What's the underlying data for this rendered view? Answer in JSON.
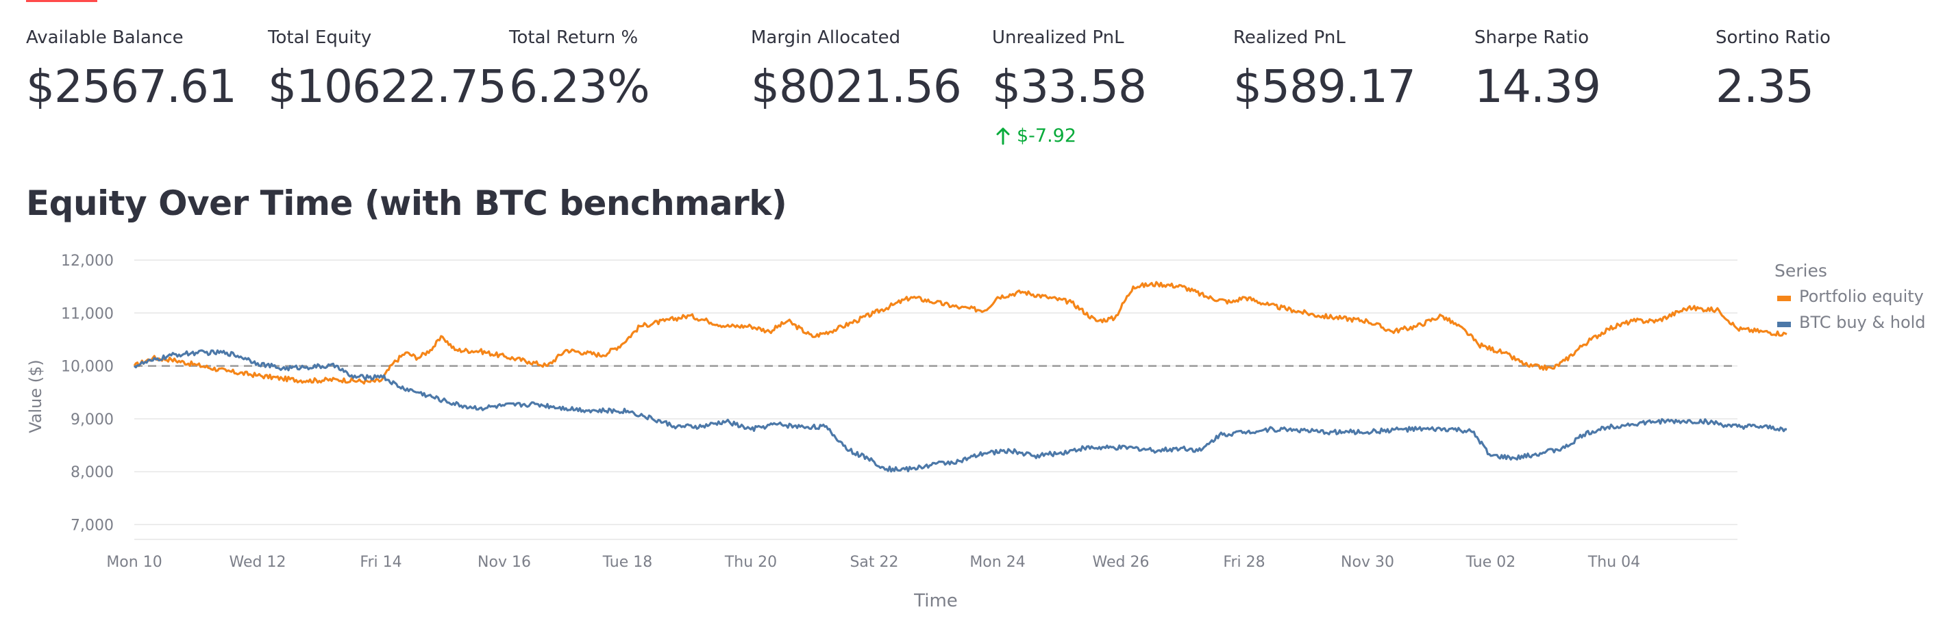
{
  "metrics": [
    {
      "label": "Available Balance",
      "value": "$2567.61"
    },
    {
      "label": "Total Equity",
      "value": "$10622.75"
    },
    {
      "label": "Total Return %",
      "value": "6.23%"
    },
    {
      "label": "Margin Allocated",
      "value": "$8021.56"
    },
    {
      "label": "Unrealized PnL",
      "value": "$33.58",
      "delta": "$-7.92",
      "delta_icon": "arrow-up-icon"
    },
    {
      "label": "Realized PnL",
      "value": "$589.17"
    },
    {
      "label": "Sharpe Ratio",
      "value": "14.39"
    },
    {
      "label": "Sortino Ratio",
      "value": "2.35"
    }
  ],
  "section": {
    "title": "Equity Over Time (with BTC benchmark)"
  },
  "colors": {
    "accent": "#ff4b4b",
    "delta_positive": "#09ab3b",
    "portfolio": "#f58518",
    "btc": "#4c78a8",
    "baseline": "#999999",
    "grid": "#e6e6e6"
  },
  "chart_data": {
    "type": "line",
    "title": "Equity Over Time (with BTC benchmark)",
    "xlabel": "Time",
    "ylabel": "Value ($)",
    "x_ticks": [
      "Mon 10",
      "Wed 12",
      "Fri 14",
      "Nov 16",
      "Tue 18",
      "Thu 20",
      "Sat 22",
      "Mon 24",
      "Wed 26",
      "Fri 28",
      "Nov 30",
      "Tue 02",
      "Thu 04"
    ],
    "y_ticks": [
      "7,000",
      "8,000",
      "9,000",
      "10,000",
      "11,000",
      "12,000"
    ],
    "x_range_days": [
      10,
      36
    ],
    "ylim": [
      6850,
      12000
    ],
    "grid": true,
    "legend_title": "Series",
    "legend_position": "right",
    "baseline": 10000,
    "series": [
      {
        "name": "Portfolio equity",
        "points": [
          [
            10.0,
            10000
          ],
          [
            10.3,
            10150
          ],
          [
            10.6,
            10120
          ],
          [
            11.0,
            10020
          ],
          [
            11.5,
            9900
          ],
          [
            12.0,
            9820
          ],
          [
            12.4,
            9760
          ],
          [
            12.8,
            9720
          ],
          [
            13.3,
            9740
          ],
          [
            13.8,
            9700
          ],
          [
            14.0,
            9720
          ],
          [
            14.2,
            10050
          ],
          [
            14.4,
            10250
          ],
          [
            14.6,
            10150
          ],
          [
            14.8,
            10300
          ],
          [
            15.0,
            10550
          ],
          [
            15.2,
            10300
          ],
          [
            15.6,
            10280
          ],
          [
            16.0,
            10180
          ],
          [
            16.4,
            10080
          ],
          [
            16.7,
            10000
          ],
          [
            17.0,
            10300
          ],
          [
            17.3,
            10250
          ],
          [
            17.6,
            10200
          ],
          [
            17.9,
            10400
          ],
          [
            18.2,
            10750
          ],
          [
            18.6,
            10850
          ],
          [
            19.0,
            10950
          ],
          [
            19.3,
            10850
          ],
          [
            19.6,
            10750
          ],
          [
            20.0,
            10750
          ],
          [
            20.3,
            10650
          ],
          [
            20.6,
            10850
          ],
          [
            21.0,
            10550
          ],
          [
            21.4,
            10700
          ],
          [
            21.7,
            10850
          ],
          [
            22.0,
            11000
          ],
          [
            22.3,
            11150
          ],
          [
            22.6,
            11300
          ],
          [
            23.0,
            11200
          ],
          [
            23.4,
            11100
          ],
          [
            23.8,
            11050
          ],
          [
            24.0,
            11300
          ],
          [
            24.4,
            11400
          ],
          [
            24.8,
            11300
          ],
          [
            25.2,
            11200
          ],
          [
            25.6,
            10850
          ],
          [
            25.9,
            10900
          ],
          [
            26.2,
            11500
          ],
          [
            26.6,
            11550
          ],
          [
            27.0,
            11500
          ],
          [
            27.4,
            11300
          ],
          [
            27.8,
            11200
          ],
          [
            28.0,
            11300
          ],
          [
            28.4,
            11150
          ],
          [
            28.8,
            11050
          ],
          [
            29.2,
            10950
          ],
          [
            29.6,
            10900
          ],
          [
            30.0,
            10850
          ],
          [
            30.4,
            10650
          ],
          [
            30.8,
            10750
          ],
          [
            31.2,
            10950
          ],
          [
            31.6,
            10650
          ],
          [
            31.8,
            10400
          ],
          [
            32.2,
            10250
          ],
          [
            32.6,
            10000
          ],
          [
            33.0,
            9950
          ],
          [
            33.2,
            10100
          ],
          [
            33.5,
            10400
          ],
          [
            33.9,
            10700
          ],
          [
            34.3,
            10850
          ],
          [
            34.7,
            10850
          ],
          [
            35.2,
            11100
          ],
          [
            35.7,
            11050
          ],
          [
            36.0,
            10700
          ],
          [
            36.4,
            10650
          ],
          [
            36.8,
            10600
          ]
        ]
      },
      {
        "name": "BTC buy & hold",
        "points": [
          [
            10.0,
            10000
          ],
          [
            10.3,
            10100
          ],
          [
            10.6,
            10200
          ],
          [
            11.0,
            10250
          ],
          [
            11.5,
            10250
          ],
          [
            11.8,
            10150
          ],
          [
            12.0,
            10050
          ],
          [
            12.4,
            9950
          ],
          [
            12.8,
            9980
          ],
          [
            13.3,
            10000
          ],
          [
            13.5,
            9800
          ],
          [
            13.8,
            9780
          ],
          [
            14.0,
            9820
          ],
          [
            14.3,
            9600
          ],
          [
            14.6,
            9500
          ],
          [
            15.0,
            9350
          ],
          [
            15.3,
            9250
          ],
          [
            15.6,
            9200
          ],
          [
            16.0,
            9250
          ],
          [
            16.5,
            9280
          ],
          [
            17.0,
            9200
          ],
          [
            17.5,
            9150
          ],
          [
            18.0,
            9150
          ],
          [
            18.4,
            9000
          ],
          [
            18.8,
            8850
          ],
          [
            19.2,
            8850
          ],
          [
            19.6,
            8950
          ],
          [
            20.0,
            8800
          ],
          [
            20.4,
            8900
          ],
          [
            20.8,
            8850
          ],
          [
            21.2,
            8850
          ],
          [
            21.6,
            8400
          ],
          [
            21.9,
            8250
          ],
          [
            22.2,
            8050
          ],
          [
            22.6,
            8050
          ],
          [
            23.0,
            8150
          ],
          [
            23.4,
            8200
          ],
          [
            23.8,
            8350
          ],
          [
            24.2,
            8400
          ],
          [
            24.6,
            8300
          ],
          [
            25.0,
            8350
          ],
          [
            25.4,
            8450
          ],
          [
            25.8,
            8450
          ],
          [
            26.2,
            8450
          ],
          [
            26.6,
            8400
          ],
          [
            27.0,
            8450
          ],
          [
            27.3,
            8400
          ],
          [
            27.6,
            8700
          ],
          [
            28.0,
            8750
          ],
          [
            28.4,
            8800
          ],
          [
            28.8,
            8800
          ],
          [
            29.2,
            8750
          ],
          [
            29.6,
            8750
          ],
          [
            30.0,
            8750
          ],
          [
            30.5,
            8800
          ],
          [
            31.0,
            8800
          ],
          [
            31.4,
            8800
          ],
          [
            31.7,
            8750
          ],
          [
            32.0,
            8300
          ],
          [
            32.4,
            8250
          ],
          [
            32.8,
            8350
          ],
          [
            33.2,
            8450
          ],
          [
            33.5,
            8700
          ],
          [
            33.9,
            8850
          ],
          [
            34.3,
            8900
          ],
          [
            34.7,
            8950
          ],
          [
            35.1,
            8950
          ],
          [
            35.5,
            8950
          ],
          [
            35.9,
            8850
          ],
          [
            36.3,
            8850
          ],
          [
            36.8,
            8800
          ]
        ]
      }
    ]
  }
}
